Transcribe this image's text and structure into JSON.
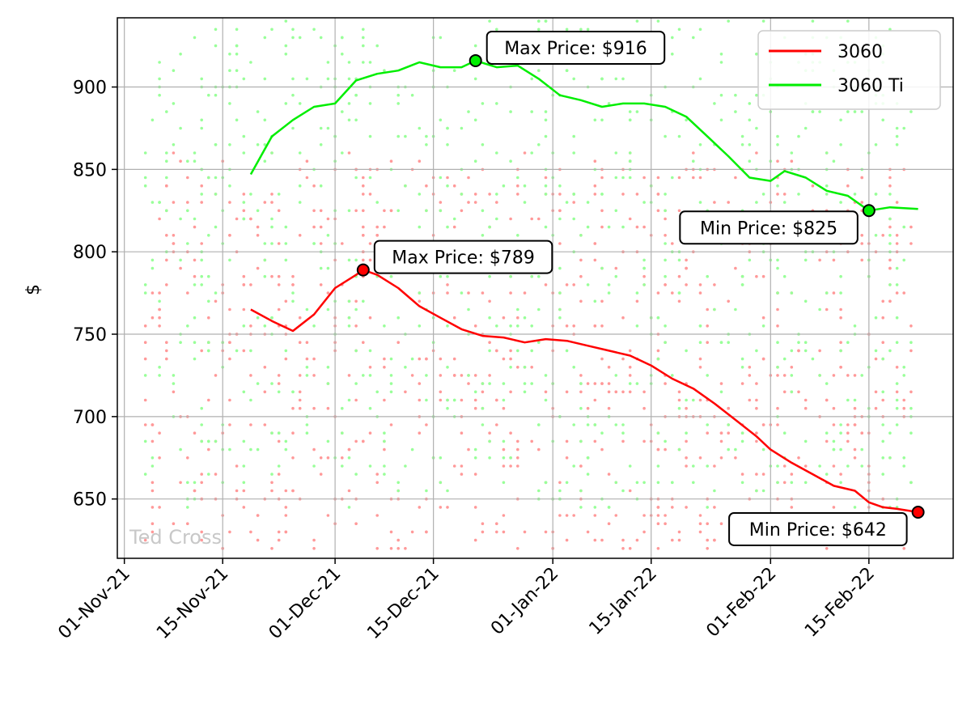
{
  "chart_data": {
    "type": "line",
    "title": "",
    "xlabel": "",
    "ylabel": "$",
    "watermark": "Ted Cross",
    "x_tick_labels": [
      "01-Nov-21",
      "15-Nov-21",
      "01-Dec-21",
      "15-Dec-21",
      "01-Jan-22",
      "15-Jan-22",
      "01-Feb-22",
      "15-Feb-22"
    ],
    "x_tick_dates": [
      "2021-11-01",
      "2021-11-15",
      "2021-12-01",
      "2021-12-15",
      "2022-01-01",
      "2022-01-15",
      "2022-02-01",
      "2022-02-15"
    ],
    "xlim": [
      "2021-10-31",
      "2022-02-27"
    ],
    "ylim": [
      614,
      942
    ],
    "y_ticks": [
      650,
      700,
      750,
      800,
      850,
      900
    ],
    "grid": true,
    "legend_position": "top-right",
    "scatter_range": {
      "start": "2021-11-04",
      "end": "2022-02-21",
      "series": [
        {
          "name": "3060",
          "low": 620,
          "high": 860,
          "color": "#ff9999"
        },
        {
          "name": "3060 Ti",
          "low": 645,
          "high": 940,
          "color": "#99ff99"
        }
      ]
    },
    "series": [
      {
        "name": "3060",
        "color": "#ff0000",
        "points": [
          [
            "2021-11-19",
            765
          ],
          [
            "2021-11-22",
            758
          ],
          [
            "2021-11-25",
            752
          ],
          [
            "2021-11-28",
            762
          ],
          [
            "2021-12-01",
            778
          ],
          [
            "2021-12-04",
            786
          ],
          [
            "2021-12-05",
            789
          ],
          [
            "2021-12-07",
            786
          ],
          [
            "2021-12-10",
            778
          ],
          [
            "2021-12-13",
            767
          ],
          [
            "2021-12-16",
            760
          ],
          [
            "2021-12-19",
            753
          ],
          [
            "2021-12-22",
            749
          ],
          [
            "2021-12-25",
            748
          ],
          [
            "2021-12-28",
            745
          ],
          [
            "2021-12-31",
            747
          ],
          [
            "2022-01-03",
            746
          ],
          [
            "2022-01-06",
            743
          ],
          [
            "2022-01-09",
            740
          ],
          [
            "2022-01-12",
            737
          ],
          [
            "2022-01-15",
            731
          ],
          [
            "2022-01-18",
            723
          ],
          [
            "2022-01-21",
            717
          ],
          [
            "2022-01-24",
            708
          ],
          [
            "2022-01-27",
            698
          ],
          [
            "2022-01-30",
            688
          ],
          [
            "2022-02-01",
            680
          ],
          [
            "2022-02-04",
            672
          ],
          [
            "2022-02-07",
            665
          ],
          [
            "2022-02-10",
            658
          ],
          [
            "2022-02-13",
            655
          ],
          [
            "2022-02-15",
            648
          ],
          [
            "2022-02-17",
            645
          ],
          [
            "2022-02-19",
            644
          ],
          [
            "2022-02-22",
            642
          ]
        ]
      },
      {
        "name": "3060 Ti",
        "color": "#00ee00",
        "points": [
          [
            "2021-11-19",
            847
          ],
          [
            "2021-11-22",
            870
          ],
          [
            "2021-11-25",
            880
          ],
          [
            "2021-11-28",
            888
          ],
          [
            "2021-12-01",
            890
          ],
          [
            "2021-12-04",
            904
          ],
          [
            "2021-12-07",
            908
          ],
          [
            "2021-12-10",
            910
          ],
          [
            "2021-12-13",
            915
          ],
          [
            "2021-12-16",
            912
          ],
          [
            "2021-12-19",
            912
          ],
          [
            "2021-12-21",
            916
          ],
          [
            "2021-12-24",
            912
          ],
          [
            "2021-12-27",
            913
          ],
          [
            "2021-12-30",
            905
          ],
          [
            "2022-01-02",
            895
          ],
          [
            "2022-01-05",
            892
          ],
          [
            "2022-01-08",
            888
          ],
          [
            "2022-01-11",
            890
          ],
          [
            "2022-01-14",
            890
          ],
          [
            "2022-01-17",
            888
          ],
          [
            "2022-01-20",
            882
          ],
          [
            "2022-01-23",
            870
          ],
          [
            "2022-01-26",
            858
          ],
          [
            "2022-01-29",
            845
          ],
          [
            "2022-02-01",
            843
          ],
          [
            "2022-02-03",
            849
          ],
          [
            "2022-02-06",
            845
          ],
          [
            "2022-02-09",
            837
          ],
          [
            "2022-02-12",
            834
          ],
          [
            "2022-02-15",
            825
          ],
          [
            "2022-02-18",
            827
          ],
          [
            "2022-02-22",
            826
          ]
        ]
      }
    ],
    "annotations": [
      {
        "series": "3060 Ti",
        "kind": "max",
        "x": "2021-12-21",
        "y": 916,
        "label": "Max Price: $916",
        "box_side": "right",
        "marker_color": "#00ee00"
      },
      {
        "series": "3060 Ti",
        "kind": "min",
        "x": "2022-02-15",
        "y": 825,
        "label": "Min Price: $825",
        "box_side": "left",
        "marker_color": "#00ee00"
      },
      {
        "series": "3060",
        "kind": "max",
        "x": "2021-12-05",
        "y": 789,
        "label": "Max Price: $789",
        "box_side": "right",
        "marker_color": "#ff0000"
      },
      {
        "series": "3060",
        "kind": "min",
        "x": "2022-02-22",
        "y": 642,
        "label": "Min Price: $642",
        "box_side": "left",
        "marker_color": "#ff0000"
      }
    ]
  }
}
